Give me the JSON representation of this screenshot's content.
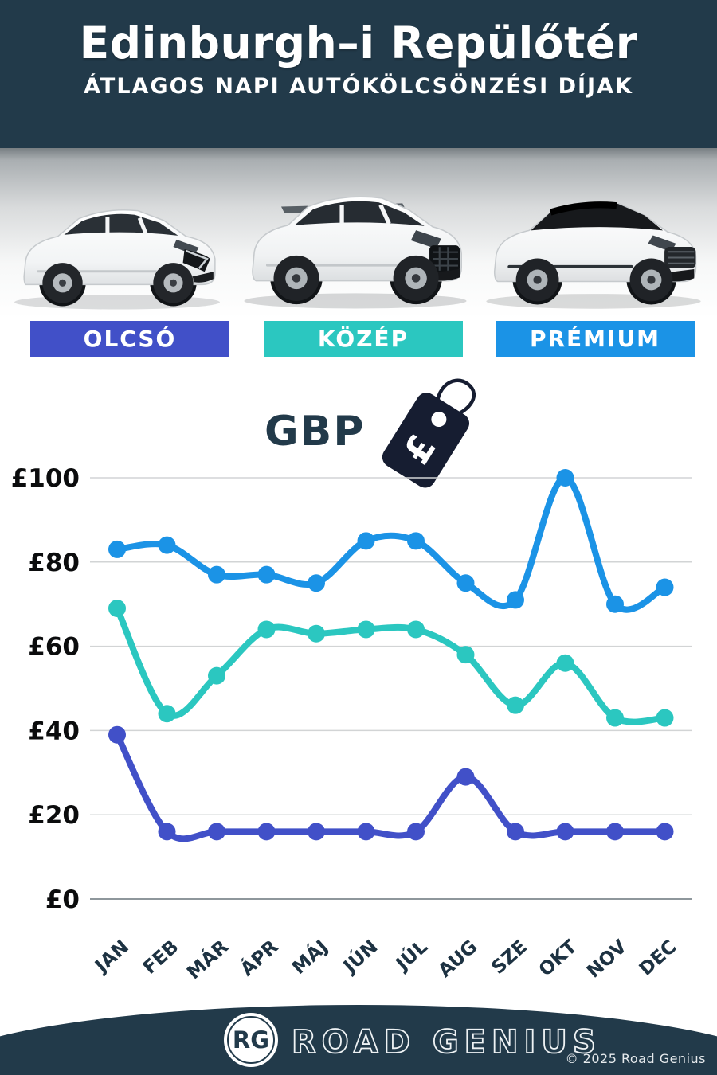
{
  "header": {
    "title": "Edinburgh–i Repülőtér",
    "subtitle": "ÁTLAGOS NAPI AUTÓKÖLCSÖNZÉSI DÍJAK"
  },
  "categories": [
    {
      "label": "OLCSÓ",
      "color": "#4150c8",
      "car": "white-hatchback"
    },
    {
      "label": "KÖZÉP",
      "color": "#2bc7c0",
      "car": "white-suv"
    },
    {
      "label": "PRÉMIUM",
      "color": "#1b93e6",
      "car": "white-luxury-suv-black-roof"
    }
  ],
  "currency": {
    "label": "GBP",
    "symbol": "£"
  },
  "chart_data": {
    "type": "line",
    "categories": [
      "JAN",
      "FEB",
      "MÁR",
      "ÁPR",
      "MÁJ",
      "JÚN",
      "JÚL",
      "AUG",
      "SZE",
      "OKT",
      "NOV",
      "DEC"
    ],
    "series": [
      {
        "name": "OLCSÓ",
        "color": "#4150c8",
        "values": [
          39,
          16,
          16,
          16,
          16,
          16,
          16,
          29,
          16,
          16,
          16,
          16
        ]
      },
      {
        "name": "KÖZÉP",
        "color": "#2bc7c0",
        "values": [
          69,
          44,
          53,
          64,
          63,
          64,
          64,
          58,
          46,
          56,
          43,
          43
        ]
      },
      {
        "name": "PRÉMIUM",
        "color": "#1b93e6",
        "values": [
          83,
          84,
          77,
          77,
          75,
          85,
          85,
          75,
          71,
          100,
          70,
          74
        ]
      }
    ],
    "title": "Edinburgh–i Repülőtér – átlagos napi autókölcsönzési díjak (GBP)",
    "xlabel": "",
    "ylabel": "GBP",
    "ylabel_prefix": "£",
    "yticks": [
      0,
      20,
      40,
      60,
      80,
      100
    ],
    "ylim": [
      0,
      100
    ],
    "grid": true,
    "legend_position": "badges-above-chart"
  },
  "footer": {
    "logo_initials": "RG",
    "brand": "ROAD GENIUS",
    "copyright": "© 2025 Road Genius"
  }
}
